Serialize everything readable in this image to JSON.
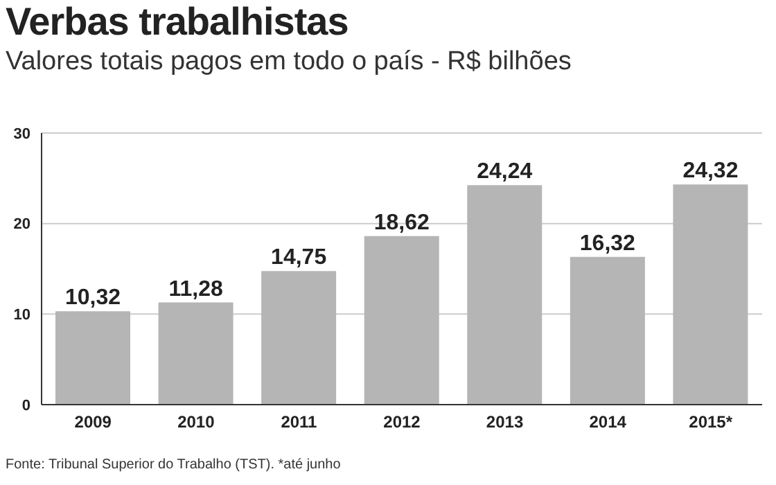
{
  "chart_data": {
    "type": "bar",
    "title": "Verbas trabalhistas",
    "subtitle": "Valores totais pagos em todo o país - R$ bilhões",
    "categories": [
      "2009",
      "2010",
      "2011",
      "2012",
      "2013",
      "2014",
      "2015*"
    ],
    "values": [
      10.32,
      11.28,
      14.75,
      18.62,
      24.24,
      16.32,
      24.32
    ],
    "value_labels": [
      "10,32",
      "11,28",
      "14,75",
      "18,62",
      "24,24",
      "16,32",
      "24,32"
    ],
    "color": "#b5b5b5",
    "ylim": [
      0,
      30
    ],
    "yticks": [
      0,
      10,
      20,
      30
    ],
    "grid": "y",
    "annotations": [
      "Fonte: Tribunal Superior do Trabalho (TST). *até junho"
    ]
  }
}
